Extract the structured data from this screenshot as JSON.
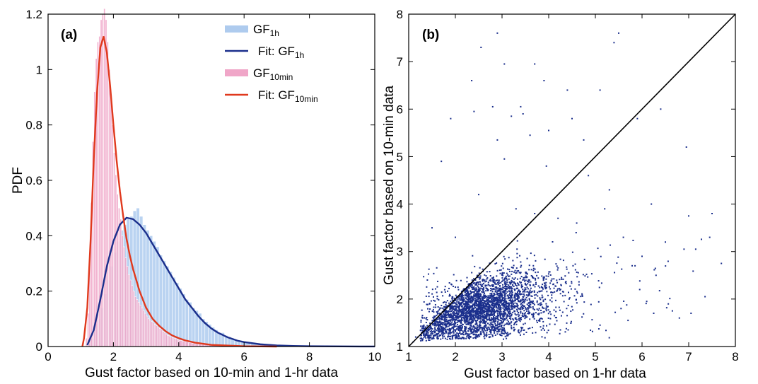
{
  "chart_data": [
    {
      "type": "histogram",
      "panel_label": "(a)",
      "title": "",
      "xlabel": "Gust factor based on 10-min and 1-hr data",
      "ylabel": "PDF",
      "xlim": [
        0,
        10
      ],
      "ylim": [
        0,
        1.2
      ],
      "xticks": [
        0,
        2,
        4,
        6,
        8,
        10
      ],
      "yticks": [
        0,
        0.2,
        0.4,
        0.6,
        0.8,
        1,
        1.2
      ],
      "grid": false,
      "legend_position": "top-right",
      "legend": [
        {
          "base": "GF",
          "sub": "1h",
          "prefix": "",
          "kind": "bar",
          "color": "#aecbee"
        },
        {
          "base": "GF",
          "sub": "1h",
          "prefix": "Fit: ",
          "kind": "line",
          "color": "#1b2f8c"
        },
        {
          "base": "GF",
          "sub": "10min",
          "prefix": "",
          "kind": "bar",
          "color": "#f0a6c8"
        },
        {
          "base": "GF",
          "sub": "10min",
          "prefix": "Fit: ",
          "kind": "line",
          "color": "#e0391d"
        }
      ],
      "hist_gf1h": {
        "bin_width": 0.1,
        "bins_start": [
          1.2,
          1.3,
          1.4,
          1.5,
          1.6,
          1.7,
          1.8,
          1.9,
          2.0,
          2.1,
          2.2,
          2.3,
          2.4,
          2.5,
          2.6,
          2.7,
          2.8,
          2.9,
          3.0,
          3.1,
          3.2,
          3.3,
          3.4,
          3.5,
          3.6,
          3.7,
          3.8,
          3.9,
          4.0,
          4.1,
          4.2,
          4.3,
          4.4,
          4.5,
          4.6,
          4.7,
          4.8,
          4.9,
          5.0,
          5.1,
          5.2,
          5.3,
          5.4,
          5.5,
          5.6,
          5.7,
          5.8,
          5.9,
          6.0,
          6.2,
          6.4,
          6.6,
          6.8,
          7.0,
          7.2,
          7.4,
          7.6,
          7.8,
          8.0,
          8.2,
          8.4,
          8.6,
          8.8,
          9.0,
          9.2,
          9.4,
          9.6,
          9.8
        ],
        "density": [
          0.01,
          0.03,
          0.06,
          0.1,
          0.14,
          0.19,
          0.24,
          0.29,
          0.34,
          0.38,
          0.42,
          0.44,
          0.46,
          0.47,
          0.49,
          0.5,
          0.47,
          0.44,
          0.42,
          0.4,
          0.38,
          0.36,
          0.33,
          0.31,
          0.29,
          0.27,
          0.25,
          0.23,
          0.21,
          0.19,
          0.17,
          0.16,
          0.14,
          0.13,
          0.12,
          0.1,
          0.09,
          0.08,
          0.07,
          0.06,
          0.05,
          0.05,
          0.04,
          0.035,
          0.03,
          0.025,
          0.02,
          0.018,
          0.015,
          0.012,
          0.01,
          0.008,
          0.007,
          0.006,
          0.005,
          0.004,
          0.004,
          0.003,
          0.003,
          0.002,
          0.002,
          0.002,
          0.002,
          0.001,
          0.001,
          0.001,
          0.001,
          0.001
        ],
        "color": "#aecbee"
      },
      "hist_gf10min": {
        "bin_width": 0.05,
        "bins_start": [
          1.15,
          1.2,
          1.25,
          1.3,
          1.35,
          1.4,
          1.45,
          1.5,
          1.55,
          1.6,
          1.65,
          1.7,
          1.75,
          1.8,
          1.85,
          1.9,
          1.95,
          2.0,
          2.05,
          2.1,
          2.15,
          2.2,
          2.25,
          2.3,
          2.35,
          2.4,
          2.45,
          2.5,
          2.55,
          2.6,
          2.65,
          2.7,
          2.75,
          2.8,
          2.85,
          2.9,
          2.95,
          3.0,
          3.05,
          3.1,
          3.15,
          3.2,
          3.25,
          3.3,
          3.35,
          3.4,
          3.45,
          3.5,
          3.55,
          3.6,
          3.65,
          3.7,
          3.75,
          3.8,
          3.85,
          3.9,
          3.95,
          4.0,
          4.1,
          4.2,
          4.3,
          4.4,
          4.5,
          4.6,
          4.7,
          4.8,
          4.9,
          5.0,
          5.2,
          5.4
        ],
        "density": [
          0.03,
          0.12,
          0.3,
          0.52,
          0.74,
          0.92,
          1.04,
          1.1,
          1.12,
          1.18,
          1.2,
          1.22,
          1.18,
          1.1,
          1.0,
          0.9,
          0.8,
          0.7,
          0.62,
          0.55,
          0.5,
          0.46,
          0.4,
          0.36,
          0.32,
          0.29,
          0.26,
          0.24,
          0.22,
          0.2,
          0.18,
          0.17,
          0.16,
          0.15,
          0.14,
          0.13,
          0.12,
          0.11,
          0.1,
          0.095,
          0.09,
          0.085,
          0.08,
          0.075,
          0.07,
          0.065,
          0.06,
          0.055,
          0.05,
          0.045,
          0.04,
          0.038,
          0.035,
          0.032,
          0.03,
          0.028,
          0.025,
          0.022,
          0.02,
          0.017,
          0.014,
          0.012,
          0.01,
          0.009,
          0.008,
          0.007,
          0.006,
          0.005,
          0.003,
          0.002
        ],
        "color": "#f0a6c8"
      },
      "fit_gf1h": {
        "x": [
          1.2,
          1.4,
          1.6,
          1.8,
          2.0,
          2.2,
          2.4,
          2.6,
          2.8,
          3.0,
          3.2,
          3.4,
          3.6,
          3.8,
          4.0,
          4.2,
          4.4,
          4.6,
          4.8,
          5.0,
          5.2,
          5.5,
          5.8,
          6.0,
          6.5,
          7.0,
          7.5,
          8.0,
          9.0,
          10.0
        ],
        "y": [
          0.005,
          0.06,
          0.17,
          0.29,
          0.38,
          0.44,
          0.465,
          0.46,
          0.44,
          0.41,
          0.37,
          0.33,
          0.29,
          0.25,
          0.21,
          0.17,
          0.14,
          0.11,
          0.085,
          0.065,
          0.05,
          0.033,
          0.021,
          0.016,
          0.008,
          0.004,
          0.002,
          0.0012,
          0.0004,
          0.0001
        ],
        "color": "#1b2f8c"
      },
      "fit_gf10min": {
        "x": [
          1.05,
          1.1,
          1.2,
          1.3,
          1.4,
          1.5,
          1.6,
          1.7,
          1.8,
          1.9,
          2.0,
          2.1,
          2.2,
          2.3,
          2.4,
          2.5,
          2.6,
          2.8,
          3.0,
          3.2,
          3.4,
          3.6,
          3.8,
          4.0,
          4.2,
          4.5,
          5.0,
          6.0,
          7.0
        ],
        "y": [
          0.0,
          0.03,
          0.14,
          0.38,
          0.68,
          0.92,
          1.08,
          1.12,
          1.06,
          0.94,
          0.8,
          0.67,
          0.56,
          0.47,
          0.39,
          0.33,
          0.28,
          0.2,
          0.14,
          0.1,
          0.075,
          0.055,
          0.04,
          0.03,
          0.022,
          0.014,
          0.006,
          0.001,
          0.0
        ],
        "color": "#e0391d"
      }
    },
    {
      "type": "scatter",
      "panel_label": "(b)",
      "title": "",
      "xlabel": "Gust factor based on 1-hr data",
      "ylabel": "Gust factor based on 10-min data",
      "xlim": [
        1,
        8
      ],
      "ylim": [
        1,
        8
      ],
      "xticks": [
        1,
        2,
        3,
        4,
        5,
        6,
        7,
        8
      ],
      "yticks": [
        1,
        2,
        3,
        4,
        5,
        6,
        7,
        8
      ],
      "grid": false,
      "point_color": "#1b2f8c",
      "reference_line": {
        "x": [
          1,
          8
        ],
        "y": [
          1,
          8
        ],
        "color": "#000000"
      },
      "points": [
        [
          2.9,
          7.6
        ],
        [
          2.55,
          7.3
        ],
        [
          3.05,
          6.95
        ],
        [
          3.7,
          6.95
        ],
        [
          5.4,
          7.4
        ],
        [
          5.5,
          7.6
        ],
        [
          2.35,
          6.6
        ],
        [
          3.9,
          6.6
        ],
        [
          4.4,
          6.4
        ],
        [
          5.1,
          6.4
        ],
        [
          2.8,
          6.05
        ],
        [
          2.4,
          5.95
        ],
        [
          3.4,
          6.05
        ],
        [
          3.45,
          5.9
        ],
        [
          6.4,
          6.0
        ],
        [
          1.9,
          5.8
        ],
        [
          3.2,
          5.85
        ],
        [
          4.5,
          5.8
        ],
        [
          5.9,
          5.8
        ],
        [
          4.0,
          5.55
        ],
        [
          3.6,
          5.45
        ],
        [
          2.9,
          5.35
        ],
        [
          4.75,
          5.35
        ],
        [
          6.95,
          5.2
        ],
        [
          1.7,
          4.9
        ],
        [
          3.05,
          4.95
        ],
        [
          3.95,
          4.8
        ],
        [
          2.5,
          4.2
        ],
        [
          6.2,
          4.0
        ],
        [
          7.5,
          3.8
        ],
        [
          7.0,
          3.75
        ],
        [
          7.45,
          3.3
        ],
        [
          6.5,
          3.2
        ],
        [
          6.9,
          3.05
        ],
        [
          7.15,
          3.05
        ],
        [
          7.7,
          2.75
        ],
        [
          7.35,
          2.05
        ],
        [
          7.05,
          1.7
        ],
        [
          6.65,
          1.75
        ],
        [
          6.8,
          1.6
        ],
        [
          6.1,
          1.95
        ],
        [
          6.25,
          1.7
        ],
        [
          5.95,
          2.2
        ],
        [
          5.55,
          1.8
        ],
        [
          5.7,
          1.55
        ],
        [
          4.25,
          1.35
        ],
        [
          5.1,
          1.45
        ],
        [
          3.65,
          1.4
        ],
        [
          2.55,
          1.4
        ],
        [
          3.2,
          1.4
        ],
        [
          1.2,
          1.2
        ],
        [
          1.1,
          1.1
        ],
        [
          1.3,
          1.3
        ],
        [
          1.15,
          1.2
        ],
        [
          4.6,
          3.6
        ],
        [
          4.2,
          3.7
        ],
        [
          3.7,
          3.8
        ],
        [
          3.3,
          3.9
        ],
        [
          5.2,
          3.9
        ],
        [
          5.6,
          3.3
        ],
        [
          6.0,
          2.9
        ],
        [
          2.0,
          3.3
        ],
        [
          1.5,
          3.5
        ],
        [
          1.4,
          2.4
        ],
        [
          4.85,
          4.6
        ],
        [
          5.3,
          4.3
        ],
        [
          5.85,
          2.7
        ],
        [
          6.3,
          2.5
        ]
      ],
      "cluster": {
        "count": 3200,
        "seed": 11,
        "center": [
          2.2,
          1.75
        ],
        "x_min": 1.25,
        "y_min": 1.15,
        "x_spread": 0.85,
        "y_spread": 0.35,
        "tail_weight": 0.12
      }
    }
  ]
}
